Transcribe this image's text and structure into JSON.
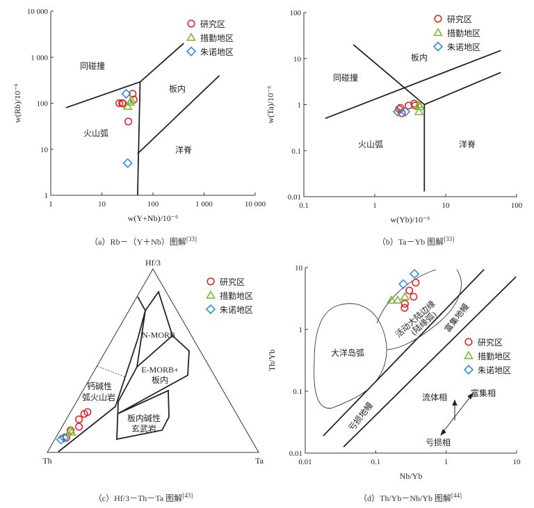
{
  "legend": [
    {
      "label": "研究区",
      "marker": "circle",
      "color": "#e0282a"
    },
    {
      "label": "措勤地区",
      "marker": "triangle",
      "color": "#7cb82f"
    },
    {
      "label": "朱诺地区",
      "marker": "diamond",
      "color": "#2f8fd6"
    }
  ],
  "chart_data": [
    {
      "id": "a",
      "type": "scatter",
      "scale": "log-log",
      "caption": "（a）Rb－（Y＋Nb）图解",
      "caption_ref": "[33]",
      "xlabel": "w(Y+Nb)/10⁻⁶",
      "ylabel": "w(Rb)/10⁻⁶",
      "xlim": [
        1,
        10000
      ],
      "ylim": [
        1,
        10000
      ],
      "xticks": [
        "1",
        "10",
        "100",
        "1 000",
        "10 000"
      ],
      "yticks": [
        "1",
        "10",
        "100",
        "1 000",
        "10 000"
      ],
      "fields": [
        "同碰撞",
        "板内",
        "火山弧",
        "洋脊"
      ],
      "boundaries": [
        [
          [
            2,
            80
          ],
          [
            56,
            290
          ],
          [
            400,
            2000
          ]
        ],
        [
          [
            56,
            290
          ],
          [
            50,
            1
          ]
        ],
        [
          [
            50,
            8
          ],
          [
            2000,
            400
          ]
        ]
      ],
      "series": [
        {
          "name": "研究区",
          "points": [
            [
              22,
              100
            ],
            [
              25,
              100
            ],
            [
              26,
              98
            ],
            [
              40,
              160
            ],
            [
              42,
              120
            ],
            [
              33,
              40
            ]
          ]
        },
        {
          "name": "措勤地区",
          "points": [
            [
              32,
              85
            ],
            [
              36,
              105
            ],
            [
              38,
              115
            ]
          ]
        },
        {
          "name": "朱诺地区",
          "points": [
            [
              30,
              160
            ],
            [
              32,
              5
            ]
          ]
        }
      ]
    },
    {
      "id": "b",
      "type": "scatter",
      "scale": "log-log",
      "caption": "（b）Ta－Yb 图解",
      "caption_ref": "[33]",
      "xlabel": "w(Yb)/10⁻⁶",
      "ylabel": "w(Ta)/10⁻⁶",
      "xlim": [
        0.1,
        100
      ],
      "ylim": [
        0.01,
        100
      ],
      "xticks": [
        "0.1",
        "1",
        "10",
        "100"
      ],
      "yticks": [
        "0.01",
        "0.1",
        "1",
        "10",
        "100"
      ],
      "fields": [
        "同碰撞",
        "板内",
        "火山弧",
        "洋脊"
      ],
      "boundaries": [
        [
          [
            0.2,
            0.5
          ],
          [
            60,
            15
          ]
        ],
        [
          [
            0.5,
            20
          ],
          [
            5,
            1
          ]
        ],
        [
          [
            5,
            1
          ],
          [
            60,
            5
          ]
        ],
        [
          [
            5,
            1
          ],
          [
            5,
            0.013
          ]
        ]
      ],
      "series": [
        {
          "name": "研究区",
          "points": [
            [
              2.2,
              0.8
            ],
            [
              2.3,
              0.85
            ],
            [
              2.4,
              0.65
            ],
            [
              3.0,
              0.95
            ],
            [
              3.6,
              1.05
            ],
            [
              3.7,
              0.95
            ]
          ]
        },
        {
          "name": "措勤地区",
          "points": [
            [
              4.2,
              1.0
            ],
            [
              4.3,
              0.9
            ],
            [
              4.2,
              0.7
            ]
          ]
        },
        {
          "name": "朱诺地区",
          "points": [
            [
              2.1,
              0.7
            ],
            [
              2.7,
              0.7
            ]
          ]
        }
      ]
    },
    {
      "id": "c",
      "type": "ternary",
      "caption": "（c）Hf/3－Th－Ta 图解",
      "caption_ref": "[43]",
      "apices": {
        "top": "Hf/3",
        "left": "Th",
        "right": "Ta"
      },
      "fields": [
        "N-MORB",
        "E-MORB+",
        "板内",
        "钙碱性",
        "弧火山岩",
        "板内碱性",
        "玄武岩"
      ],
      "series": [
        {
          "name": "研究区",
          "points": [
            [
              0.08,
              0.87,
              0.05
            ],
            [
              0.12,
              0.83,
              0.05
            ],
            [
              0.14,
              0.78,
              0.08
            ],
            [
              0.18,
              0.76,
              0.06
            ],
            [
              0.21,
              0.72,
              0.07
            ],
            [
              0.22,
              0.7,
              0.08
            ]
          ]
        },
        {
          "name": "措勤地区",
          "points": [
            [
              0.12,
              0.83,
              0.05
            ],
            [
              0.11,
              0.83,
              0.06
            ]
          ]
        },
        {
          "name": "朱诺地区",
          "points": [
            [
              0.07,
              0.9,
              0.03
            ],
            [
              0.08,
              0.88,
              0.04
            ]
          ]
        }
      ]
    },
    {
      "id": "d",
      "type": "scatter",
      "scale": "log-log",
      "caption": "（d）Th/Yb－Nb/Yb 图解",
      "caption_ref": "[44]",
      "xlabel": "Nb/Yb",
      "ylabel": "Th/Yb",
      "xlim": [
        0.01,
        10
      ],
      "ylim": [
        0.01,
        10
      ],
      "xticks": [
        "0.01",
        "0.1",
        "1",
        "10"
      ],
      "yticks": [
        "0.01",
        "0.1",
        "1",
        "10"
      ],
      "fields": [
        "大洋岛弧",
        "活动大陆边缘",
        "(陆缘弧)",
        "富集地幔",
        "亏损地幔",
        "流体相",
        "富集相",
        "亏损相"
      ],
      "boundaries": [
        [
          [
            0.018,
            0.019
          ],
          [
            3.45,
            9.3
          ]
        ],
        [
          [
            0.035,
            0.0126
          ],
          [
            9.8,
            7.1
          ]
        ]
      ],
      "series": [
        {
          "name": "研究区",
          "points": [
            [
              0.37,
              5.7
            ],
            [
              0.3,
              4.25
            ],
            [
              0.345,
              3.37
            ],
            [
              0.26,
              2.6
            ],
            [
              0.257,
              2.23
            ]
          ]
        },
        {
          "name": "措勤地区",
          "points": [
            [
              0.167,
              2.96
            ],
            [
              0.205,
              2.96
            ],
            [
              0.26,
              3.37
            ]
          ]
        },
        {
          "name": "朱诺地区",
          "points": [
            [
              0.247,
              5.4
            ],
            [
              0.355,
              7.9
            ]
          ]
        }
      ]
    }
  ]
}
